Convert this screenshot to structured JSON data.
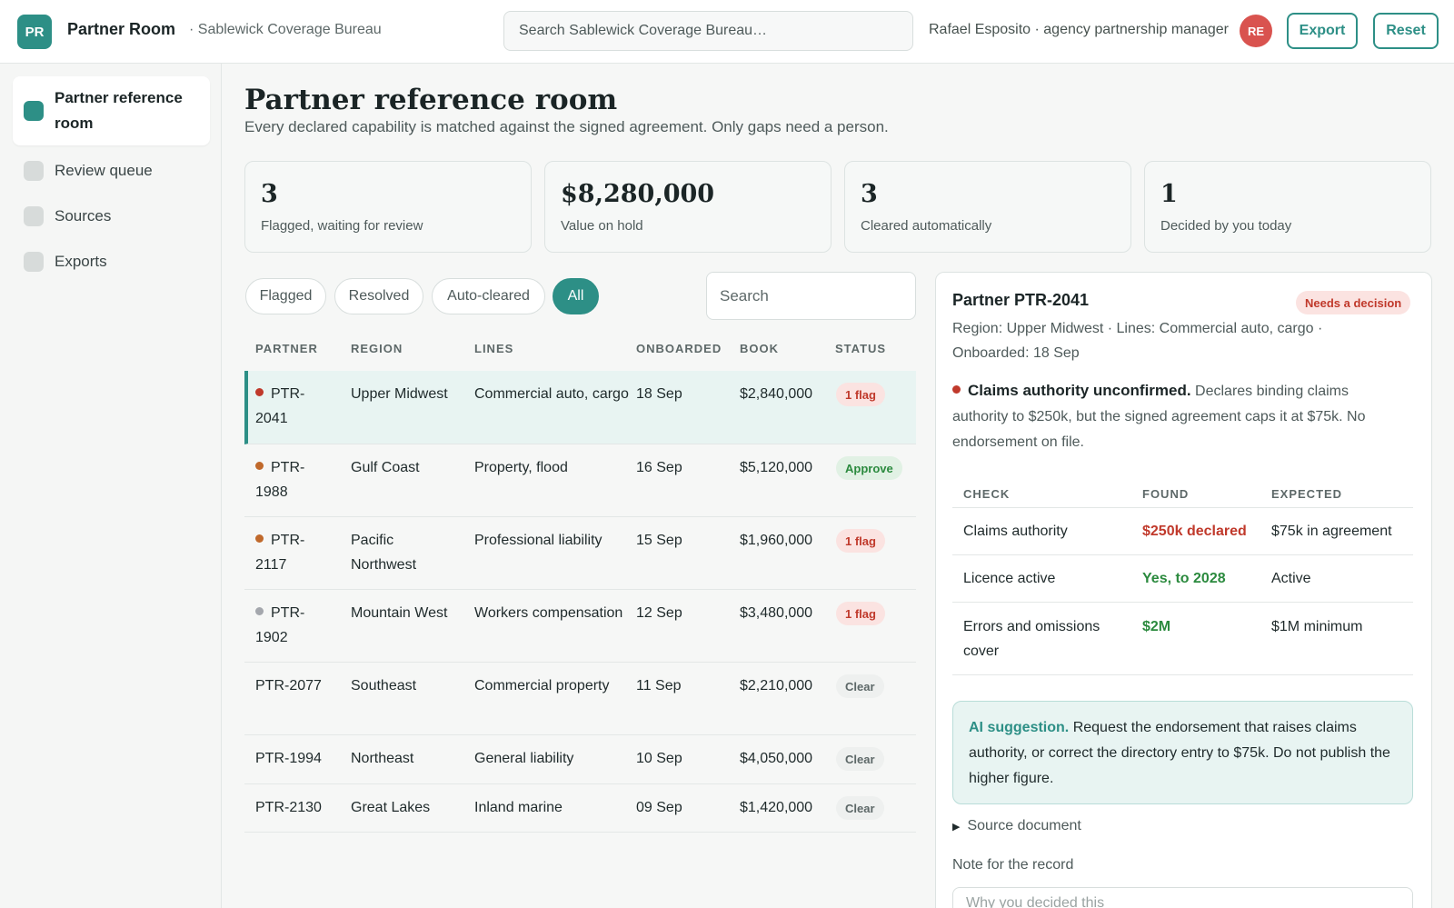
{
  "app": {
    "logo": "PR",
    "title": "Partner Room",
    "org": "· Sablewick Coverage Bureau",
    "search_placeholder": "Search Sablewick Coverage Bureau…",
    "user": "Rafael Esposito · agency partnership manager",
    "avatar": "RE",
    "export_label": "Export",
    "reset_label": "Reset"
  },
  "sidebar": {
    "items": [
      {
        "label": "Partner reference room",
        "active": true
      },
      {
        "label": "Review queue"
      },
      {
        "label": "Sources"
      },
      {
        "label": "Exports"
      }
    ]
  },
  "main": {
    "title": "Partner reference room",
    "subtitle": "Every declared capability is matched against the signed agreement. Only gaps need a person.",
    "stats": [
      {
        "value": "3",
        "label": "Flagged, waiting for review"
      },
      {
        "value": "$8,280,000",
        "label": "Value on hold"
      },
      {
        "value": "3",
        "label": "Cleared automatically"
      },
      {
        "value": "1",
        "label": "Decided by you today"
      }
    ],
    "filters": [
      "Flagged",
      "Resolved",
      "Auto-cleared",
      "All"
    ],
    "active_filter": "All",
    "search_placeholder": "Search",
    "columns": [
      "PARTNER",
      "REGION",
      "LINES",
      "ONBOARDED",
      "BOOK",
      "STATUS"
    ],
    "rows": [
      {
        "partner": "PTR-2041",
        "dot": "#c0392b",
        "region": "Upper Midwest",
        "lines": "Commercial auto, cargo",
        "onboarded": "18 Sep",
        "book": "$2,840,000",
        "status": "1 flag",
        "status_kind": "flag",
        "selected": true
      },
      {
        "partner": "PTR-1988",
        "dot": "#c0692b",
        "region": "Gulf Coast",
        "lines": "Property, flood",
        "onboarded": "16 Sep",
        "book": "$5,120,000",
        "status": "Approve",
        "status_kind": "approve"
      },
      {
        "partner": "PTR-2117",
        "dot": "#c0692b",
        "region": "Pacific Northwest",
        "lines": "Professional liability",
        "onboarded": "15 Sep",
        "book": "$1,960,000",
        "status": "1 flag",
        "status_kind": "flag"
      },
      {
        "partner": "PTR-1902",
        "dot": "#a4a7ad",
        "region": "Mountain West",
        "lines": "Workers compensation",
        "onboarded": "12 Sep",
        "book": "$3,480,000",
        "status": "1 flag",
        "status_kind": "flag"
      },
      {
        "partner": "PTR-2077",
        "region": "Southeast",
        "lines": "Commercial property",
        "onboarded": "11 Sep",
        "book": "$2,210,000",
        "status": "Clear",
        "status_kind": "clear"
      },
      {
        "partner": "PTR-1994",
        "region": "Northeast",
        "lines": "General liability",
        "onboarded": "10 Sep",
        "book": "$4,050,000",
        "status": "Clear",
        "status_kind": "clear"
      },
      {
        "partner": "PTR-2130",
        "region": "Great Lakes",
        "lines": "Inland marine",
        "onboarded": "09 Sep",
        "book": "$1,420,000",
        "status": "Clear",
        "status_kind": "clear"
      }
    ]
  },
  "detail": {
    "title": "Partner PTR-2041",
    "badge": "Needs a decision",
    "meta": "Region: Upper Midwest · Lines: Commercial auto, cargo · Onboarded: 18 Sep",
    "issue_title": "Claims authority unconfirmed.",
    "issue_text": "Declares binding claims authority to $250k, but the signed agreement caps it at $75k. No endorsement on file.",
    "check_columns": [
      "CHECK",
      "FOUND",
      "EXPECTED"
    ],
    "checks": [
      {
        "check": "Claims authority",
        "found": "$250k declared",
        "found_kind": "bad",
        "expected": "$75k in agreement"
      },
      {
        "check": "Licence active",
        "found": "Yes, to 2028",
        "found_kind": "good",
        "expected": "Active"
      },
      {
        "check": "Errors and omissions cover",
        "found": "$2M",
        "found_kind": "good",
        "expected": "$1M minimum"
      }
    ],
    "ai_label": "AI suggestion.",
    "ai_text": "Request the endorsement that raises claims authority, or correct the directory entry to $75k. Do not publish the higher figure.",
    "source_label": "Source document",
    "note_label": "Note for the record",
    "note_placeholder": "Why you decided this"
  },
  "colors": {
    "accent": "#2d8f86",
    "flag": "#c0392b",
    "approve": "#2b8a3e"
  }
}
